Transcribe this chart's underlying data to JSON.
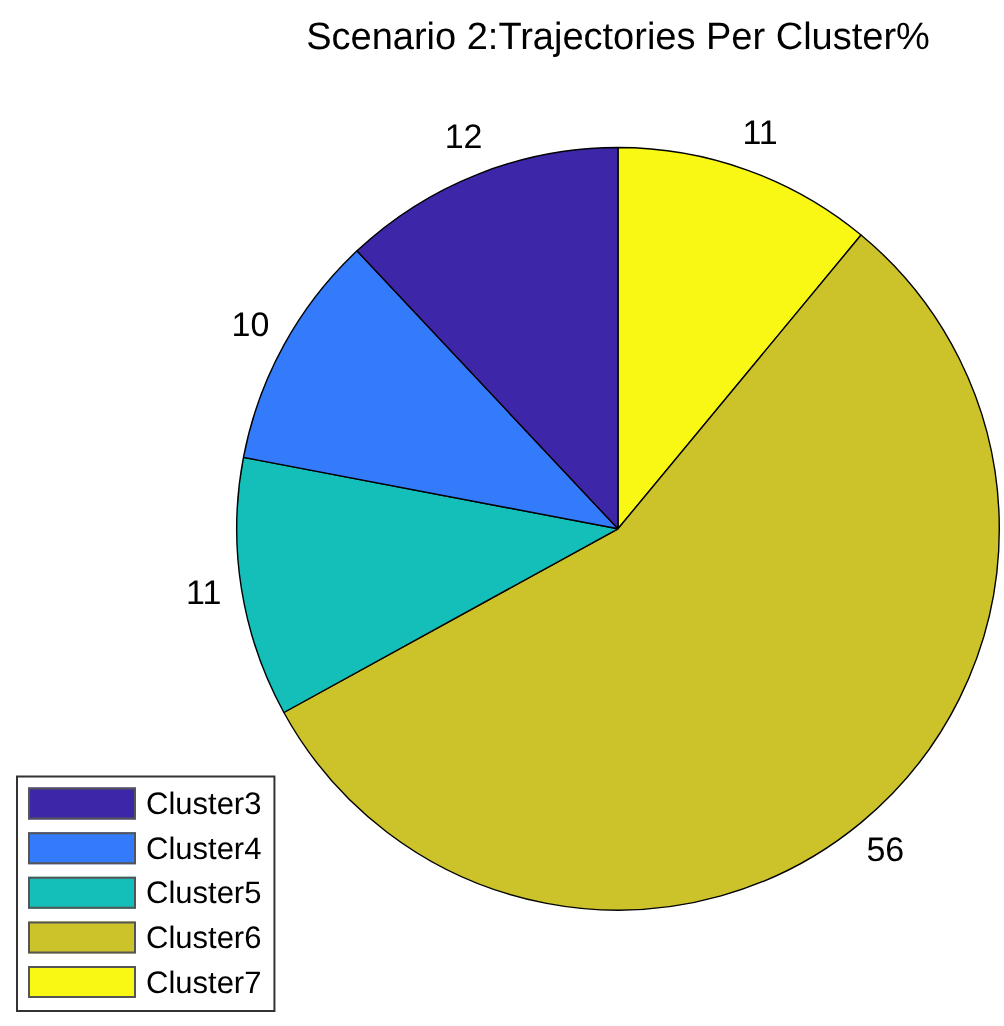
{
  "chart_data": {
    "type": "pie",
    "title": "Scenario 2:Trajectories Per Cluster%",
    "categories": [
      "Cluster3",
      "Cluster4",
      "Cluster5",
      "Cluster6",
      "Cluster7"
    ],
    "values": [
      12,
      10,
      11,
      56,
      11
    ],
    "colors": [
      "#3e26a8",
      "#337bfa",
      "#14bfb9",
      "#ccc22a",
      "#f8f814"
    ],
    "data_labels": true,
    "legend": "bottom left"
  }
}
